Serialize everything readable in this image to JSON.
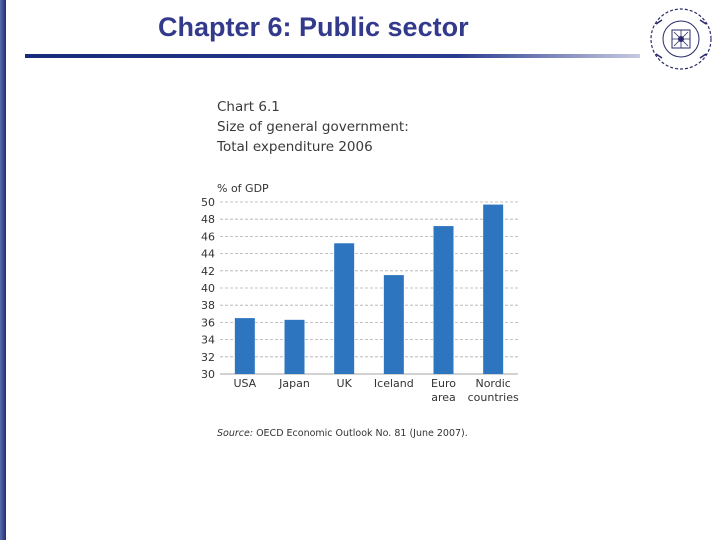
{
  "slide": {
    "title": "Chapter 6: Public sector"
  },
  "logo": {
    "icon": "university-seal-icon",
    "color": "#2a2a6a"
  },
  "chart_heading": {
    "number": "Chart 6.1",
    "line1": "Size of general government:",
    "line2": "Total expenditure 2006"
  },
  "source": {
    "label": "Source:",
    "text": "OECD Economic Outlook No. 81 (June 2007)."
  },
  "colors": {
    "bar": "#2e75c0",
    "grid": "#b0b0b0",
    "title": "#333a8c"
  },
  "chart_data": {
    "type": "bar",
    "ylabel": "% of GDP",
    "ylim": [
      30,
      50
    ],
    "yticks": [
      30,
      32,
      34,
      36,
      38,
      40,
      42,
      44,
      46,
      48,
      50
    ],
    "grid": true,
    "categories": [
      [
        "USA"
      ],
      [
        "Japan"
      ],
      [
        "UK"
      ],
      [
        "Iceland"
      ],
      [
        "Euro",
        "area"
      ],
      [
        "Nordic",
        "countries"
      ]
    ],
    "values": [
      36.5,
      36.3,
      45.2,
      41.5,
      47.2,
      49.7
    ]
  }
}
